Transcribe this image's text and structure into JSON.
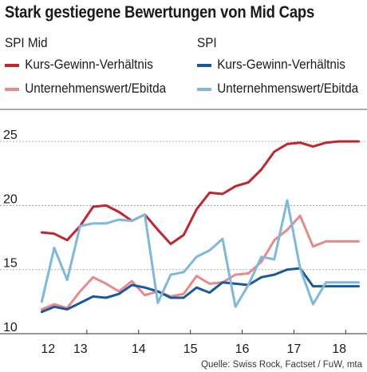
{
  "title": "Stark gestiegene Bewertungen von Mid Caps",
  "source": "Quelle: Swiss Rock, Factset / FuW, mta",
  "legend": {
    "groups": [
      {
        "title": "SPI Mid",
        "items": [
          {
            "label": "Kurs-Gewinn-Verhältnis",
            "color": "#c0262d"
          },
          {
            "label": "Unternehmenswert/Ebitda",
            "color": "#e8898a"
          }
        ]
      },
      {
        "title": "SPI",
        "items": [
          {
            "label": "Kurs-Gewinn-Verhältnis",
            "color": "#1a5a9a"
          },
          {
            "label": "Unternehmenswert/Ebitda",
            "color": "#7fb8da"
          }
        ]
      }
    ]
  },
  "chart_data": {
    "type": "line",
    "title": "Stark gestiegene Bewertungen von Mid Caps",
    "xlim": [
      12.0,
      18.35
    ],
    "ylim": [
      10,
      27.5
    ],
    "yticks": [
      10,
      15,
      20,
      25
    ],
    "xtick_labels": [
      "12",
      "13",
      "14",
      "15",
      "16",
      "17",
      "18"
    ],
    "xtick_label_positions": [
      12.25,
      12.875,
      14.0,
      15.0,
      16.0,
      17.0,
      17.875
    ],
    "grid": "horizontal",
    "series": [
      {
        "name": "SPI Mid Kurs-Gewinn-Verhältnis",
        "color": "#c0262d",
        "x": [
          12.13,
          12.37,
          12.62,
          12.87,
          13.12,
          13.37,
          13.62,
          13.87,
          14.12,
          14.37,
          14.62,
          14.87,
          15.12,
          15.37,
          15.62,
          15.87,
          16.12,
          16.37,
          16.62,
          16.87,
          17.12,
          17.37,
          17.62,
          17.87,
          18.12,
          18.25
        ],
        "y": [
          17.9,
          17.8,
          17.3,
          18.4,
          19.9,
          20.0,
          19.5,
          18.8,
          19.3,
          18.1,
          17.0,
          17.7,
          19.7,
          21.0,
          20.9,
          21.5,
          21.8,
          22.8,
          24.2,
          24.8,
          24.9,
          24.6,
          24.9,
          25.0,
          25.0,
          25.0
        ]
      },
      {
        "name": "SPI Mid Unternehmenswert/Ebitda",
        "color": "#e8898a",
        "x": [
          12.13,
          12.37,
          12.62,
          12.87,
          13.12,
          13.37,
          13.62,
          13.87,
          14.12,
          14.37,
          14.62,
          14.87,
          15.12,
          15.37,
          15.62,
          15.87,
          16.12,
          16.37,
          16.62,
          16.87,
          17.12,
          17.37,
          17.62,
          17.87,
          18.12,
          18.25
        ],
        "y": [
          11.9,
          12.3,
          12.0,
          13.3,
          14.4,
          13.9,
          13.3,
          14.1,
          13.0,
          13.3,
          12.9,
          13.1,
          14.5,
          13.9,
          14.0,
          14.6,
          14.7,
          15.6,
          17.3,
          18.1,
          19.2,
          16.8,
          17.2,
          17.2,
          17.2,
          17.2
        ]
      },
      {
        "name": "SPI Kurs-Gewinn-Verhältnis",
        "color": "#1a5a9a",
        "x": [
          12.13,
          12.37,
          12.62,
          12.87,
          13.12,
          13.37,
          13.62,
          13.87,
          14.12,
          14.37,
          14.62,
          14.87,
          15.12,
          15.37,
          15.62,
          15.87,
          16.12,
          16.37,
          16.62,
          16.87,
          17.12,
          17.37,
          17.62,
          17.87,
          18.12,
          18.25
        ],
        "y": [
          11.7,
          12.1,
          11.9,
          12.4,
          12.9,
          12.8,
          13.1,
          13.8,
          13.6,
          13.3,
          12.8,
          12.8,
          13.6,
          13.2,
          14.0,
          13.9,
          13.8,
          14.4,
          14.6,
          15.0,
          15.1,
          13.7,
          13.7,
          13.7,
          13.7,
          13.7
        ]
      },
      {
        "name": "SPI Unternehmenswert/Ebitda",
        "color": "#7fb8da",
        "x": [
          12.13,
          12.37,
          12.62,
          12.87,
          13.12,
          13.37,
          13.62,
          13.87,
          14.12,
          14.37,
          14.62,
          14.87,
          15.12,
          15.37,
          15.62,
          15.87,
          16.12,
          16.37,
          16.62,
          16.87,
          17.12,
          17.37,
          17.62,
          17.87,
          18.12,
          18.25
        ],
        "y": [
          12.5,
          16.7,
          14.2,
          18.4,
          18.6,
          18.6,
          18.9,
          18.8,
          19.3,
          12.4,
          14.6,
          14.8,
          16.0,
          16.5,
          17.4,
          12.1,
          13.8,
          16.0,
          15.8,
          20.4,
          15.1,
          12.3,
          14.0,
          14.0,
          14.0,
          14.0
        ]
      }
    ]
  }
}
